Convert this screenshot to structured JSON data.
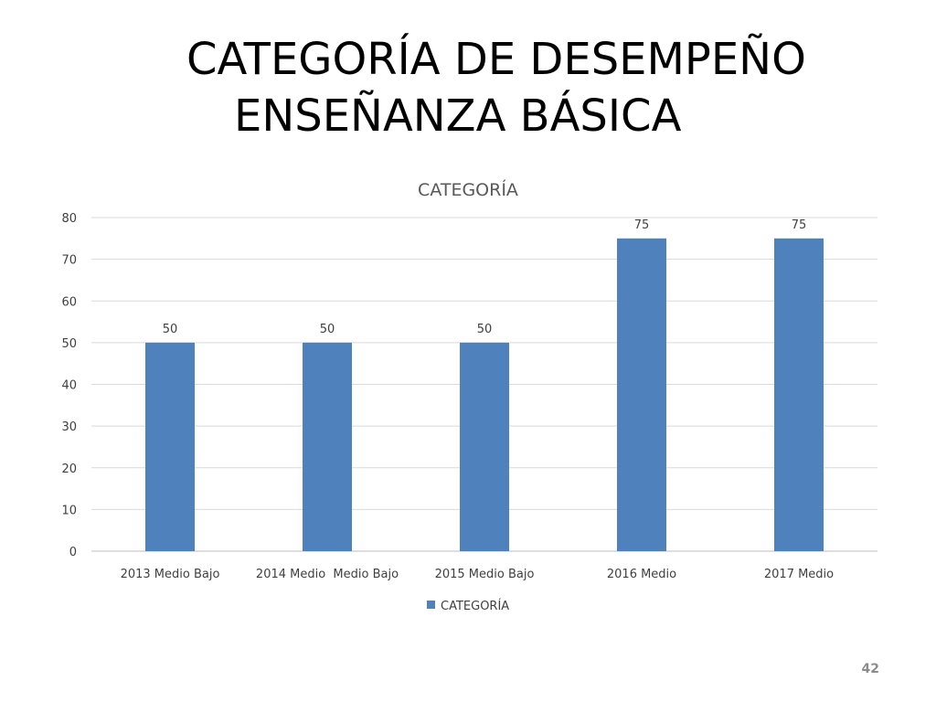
{
  "slide": {
    "title_line1": "CATEGORÍA DE DESEMPEÑO",
    "title_line2": "ENSEÑANZA BÁSICA",
    "page_number": "42"
  },
  "chart_data": {
    "type": "bar",
    "title": "CATEGORÍA",
    "categories": [
      "2013 Medio Bajo",
      "2014 Medio  Medio Bajo",
      "2015 Medio Bajo",
      "2016 Medio",
      "2017 Medio"
    ],
    "series": [
      {
        "name": "CATEGORÍA",
        "values": [
          50,
          50,
          50,
          75,
          75
        ]
      }
    ],
    "ylim": [
      0,
      80
    ],
    "yticks": [
      0,
      10,
      20,
      30,
      40,
      50,
      60,
      70,
      80
    ],
    "grid": true,
    "data_labels": true,
    "legend": "bottom",
    "colors": {
      "bar": "#4f81bd",
      "grid": "#d9d9d9",
      "text": "#404040",
      "title": "#595959"
    }
  }
}
